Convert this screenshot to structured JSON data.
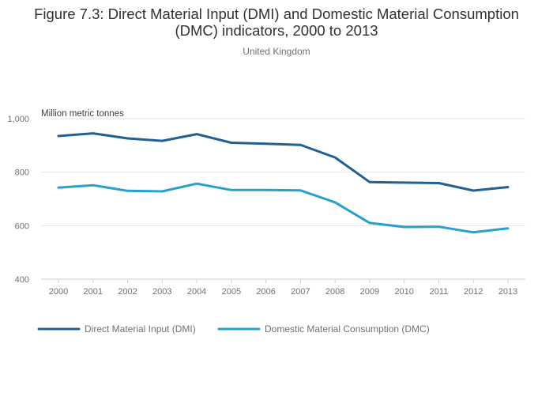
{
  "chart_data": {
    "type": "line",
    "title_line1": "Figure 7.3: Direct Material Input (DMI) and Domestic Material Consumption",
    "title_line2": "(DMC) indicators, 2000 to 2013",
    "subtitle": "United Kingdom",
    "ylabel": "Million metric tonnes",
    "xlabel": "",
    "x": [
      "2000",
      "2001",
      "2002",
      "2003",
      "2004",
      "2005",
      "2006",
      "2007",
      "2008",
      "2009",
      "2010",
      "2011",
      "2012",
      "2013"
    ],
    "ylim": [
      400,
      1000
    ],
    "yticks": [
      400,
      600,
      800,
      1000
    ],
    "ytick_labels": [
      "400",
      "600",
      "800",
      "1,000"
    ],
    "grid": true,
    "legend_position": "bottom-left",
    "series": [
      {
        "name": "Direct Material Input (DMI)",
        "color": "#206095",
        "values": [
          935,
          945,
          926,
          917,
          942,
          910,
          906,
          902,
          855,
          763,
          761,
          759,
          731,
          744
        ]
      },
      {
        "name": "Domestic Material Consumption (DMC)",
        "color": "#27a0cc",
        "values": [
          742,
          751,
          730,
          728,
          757,
          733,
          733,
          732,
          687,
          610,
          595,
          596,
          575,
          590
        ]
      }
    ]
  }
}
